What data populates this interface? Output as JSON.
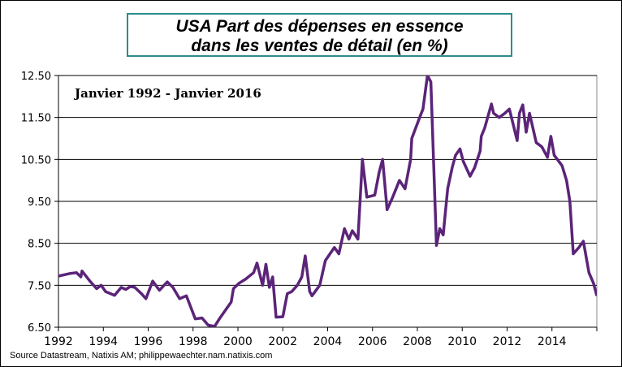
{
  "chart_data": {
    "type": "line",
    "title": [
      "USA Part des dépenses en essence",
      "dans les ventes de détail (en %)"
    ],
    "annotation": "Janvier 1992 - Janvier 2016",
    "source": "Source Datastream, Natixis AM; philippewaechter.nam.natixis.com",
    "xlim": [
      1992,
      2016
    ],
    "ylim": [
      6.5,
      12.5
    ],
    "yticks": [
      "6.50",
      "7.50",
      "8.50",
      "9.50",
      "10.50",
      "11.50",
      "12.50"
    ],
    "xticks": [
      "1992",
      "1994",
      "1996",
      "1998",
      "2000",
      "2002",
      "2004",
      "2006",
      "2008",
      "2010",
      "2012",
      "2014"
    ],
    "grid": "horizontal",
    "line_color": "#5b2479",
    "x": [
      1992.0,
      1992.25,
      1992.5,
      1992.8,
      1993.0,
      1993.05,
      1993.4,
      1993.7,
      1993.9,
      1994.1,
      1994.5,
      1994.8,
      1995.0,
      1995.2,
      1995.4,
      1995.7,
      1995.9,
      1996.2,
      1996.5,
      1996.85,
      1997.1,
      1997.4,
      1997.7,
      1998.1,
      1998.4,
      1998.67,
      1998.96,
      1999.2,
      1999.7,
      1999.8,
      2000.05,
      2000.35,
      2000.7,
      2000.85,
      2001.1,
      2001.25,
      2001.4,
      2001.55,
      2001.7,
      2002.0,
      2002.2,
      2002.4,
      2002.65,
      2002.85,
      2003.0,
      2003.2,
      2003.3,
      2003.65,
      2003.9,
      2004.3,
      2004.5,
      2004.75,
      2004.95,
      2005.1,
      2005.35,
      2005.55,
      2005.75,
      2006.1,
      2006.3,
      2006.45,
      2006.65,
      2006.9,
      2007.2,
      2007.45,
      2007.7,
      2007.75,
      2008.1,
      2008.25,
      2008.45,
      2008.6,
      2008.85,
      2009.0,
      2009.15,
      2009.35,
      2009.55,
      2009.7,
      2009.9,
      2010.05,
      2010.35,
      2010.55,
      2010.8,
      2010.85,
      2011.0,
      2011.3,
      2011.4,
      2011.65,
      2011.9,
      2012.1,
      2012.45,
      2012.55,
      2012.7,
      2012.85,
      2013.0,
      2013.3,
      2013.55,
      2013.8,
      2013.95,
      2014.1,
      2014.45,
      2014.65,
      2014.8,
      2014.95,
      2015.2,
      2015.4,
      2015.65,
      2015.85,
      2016.0
    ],
    "y": [
      7.72,
      7.75,
      7.78,
      7.8,
      7.7,
      7.84,
      7.6,
      7.42,
      7.5,
      7.35,
      7.26,
      7.45,
      7.4,
      7.47,
      7.45,
      7.3,
      7.18,
      7.6,
      7.38,
      7.58,
      7.45,
      7.18,
      7.25,
      6.7,
      6.72,
      6.55,
      6.52,
      6.72,
      7.1,
      7.42,
      7.55,
      7.65,
      7.8,
      8.03,
      7.5,
      8.0,
      7.45,
      7.7,
      6.74,
      6.75,
      7.3,
      7.35,
      7.5,
      7.7,
      8.2,
      7.35,
      7.25,
      7.5,
      8.09,
      8.4,
      8.25,
      8.85,
      8.6,
      8.8,
      8.6,
      10.5,
      9.6,
      9.65,
      10.2,
      10.5,
      9.3,
      9.6,
      10.0,
      9.8,
      10.5,
      11.0,
      11.5,
      11.7,
      12.5,
      12.35,
      8.45,
      8.85,
      8.7,
      9.8,
      10.3,
      10.6,
      10.75,
      10.45,
      10.1,
      10.3,
      10.7,
      11.05,
      11.25,
      11.82,
      11.6,
      11.5,
      11.6,
      11.7,
      10.95,
      11.6,
      11.8,
      11.15,
      11.6,
      10.9,
      10.8,
      10.55,
      11.05,
      10.6,
      10.35,
      10.0,
      9.5,
      8.25,
      8.4,
      8.55,
      7.8,
      7.55,
      7.25
    ]
  }
}
